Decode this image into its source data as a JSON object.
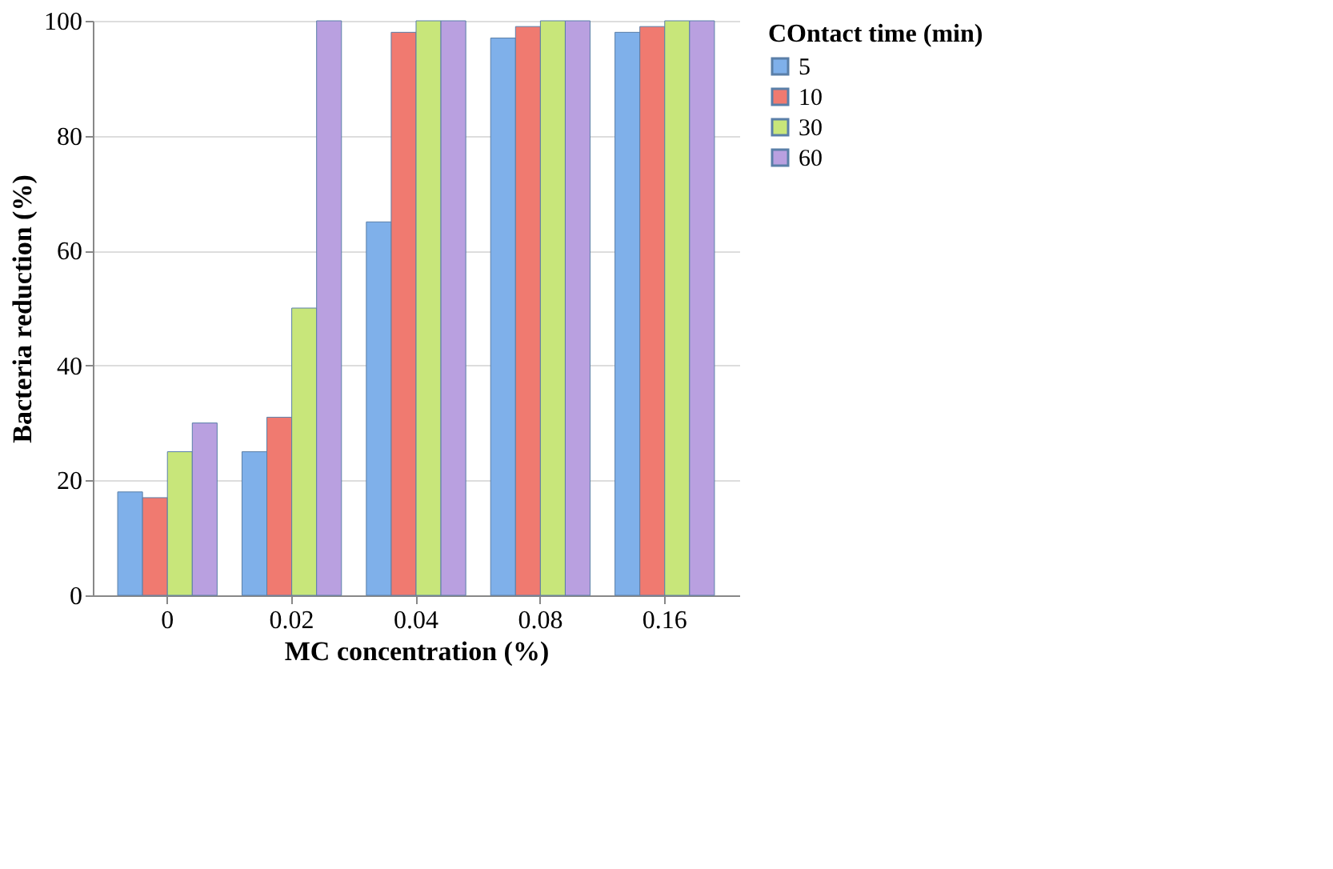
{
  "chart_data": {
    "type": "bar",
    "xlabel": "MC concentration (%)",
    "ylabel": "Bacteria reduction (%)",
    "legend_title": "COntact time (min)",
    "categories": [
      "0",
      "0.02",
      "0.04",
      "0.08",
      "0.16"
    ],
    "series": [
      {
        "name": "5",
        "color": "#7fb0ea",
        "values": [
          18,
          25,
          65,
          97,
          98
        ]
      },
      {
        "name": "10",
        "color": "#f07a70",
        "values": [
          17,
          31,
          98,
          99,
          99
        ]
      },
      {
        "name": "30",
        "color": "#c8e67a",
        "values": [
          25,
          50,
          100,
          100,
          100
        ]
      },
      {
        "name": "60",
        "color": "#b9a0e0",
        "values": [
          30,
          100,
          100,
          100,
          100
        ]
      }
    ],
    "ylim": [
      0,
      100
    ],
    "yticks": [
      0,
      20,
      40,
      60,
      80,
      100
    ],
    "grid": "y",
    "legend": "right"
  }
}
